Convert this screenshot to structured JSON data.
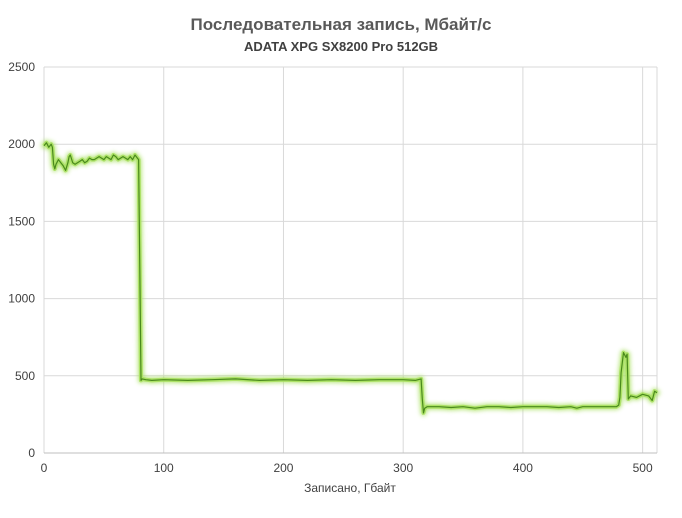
{
  "chart_data": {
    "type": "line",
    "title": "Последовательная запись, Мбайт/с",
    "subtitle": "ADATA XPG SX8200  Pro 512GB",
    "xlabel": "Записано, Гбайт",
    "ylabel": "",
    "xlim": [
      0,
      512
    ],
    "ylim": [
      0,
      2500
    ],
    "x_ticks": [
      "0",
      "100",
      "200",
      "300",
      "400",
      "500"
    ],
    "y_ticks": [
      "0",
      "500",
      "1000",
      "1500",
      "2000",
      "2500"
    ],
    "grid": true,
    "legend": "none",
    "colors": {
      "line": "#4a8a1c",
      "glow": "#a8e060",
      "grid": "#d9d9d9",
      "border": "#bfbfbf"
    },
    "series": [
      {
        "x": [
          0,
          2,
          4,
          6,
          7,
          8,
          9,
          10,
          12,
          14,
          16,
          18,
          20,
          21,
          22,
          24,
          26,
          28,
          30,
          32,
          34,
          36,
          38,
          40,
          42,
          44,
          46,
          48,
          50,
          52,
          54,
          56,
          58,
          60,
          62,
          64,
          66,
          68,
          70,
          72,
          74,
          76,
          78,
          79,
          80,
          81,
          82,
          85,
          90,
          100,
          120,
          140,
          160,
          180,
          200,
          220,
          240,
          260,
          280,
          300,
          310,
          315,
          316,
          317,
          318,
          320,
          330,
          340,
          350,
          360,
          370,
          380,
          390,
          400,
          410,
          420,
          430,
          440,
          445,
          450,
          460,
          470,
          478,
          480,
          481,
          482,
          484,
          486,
          487,
          488,
          490,
          495,
          500,
          505,
          508,
          510,
          512
        ],
        "y": [
          1990,
          2010,
          1980,
          2000,
          1980,
          1870,
          1840,
          1870,
          1900,
          1880,
          1860,
          1830,
          1880,
          1920,
          1930,
          1880,
          1870,
          1880,
          1890,
          1900,
          1880,
          1890,
          1910,
          1900,
          1900,
          1910,
          1920,
          1910,
          1900,
          1920,
          1910,
          1900,
          1930,
          1920,
          1900,
          1910,
          1920,
          1910,
          1900,
          1920,
          1900,
          1930,
          1910,
          1900,
          1200,
          470,
          480,
          475,
          470,
          475,
          470,
          475,
          480,
          470,
          475,
          470,
          475,
          470,
          475,
          475,
          470,
          480,
          350,
          260,
          290,
          300,
          300,
          295,
          300,
          290,
          300,
          300,
          295,
          300,
          300,
          300,
          295,
          300,
          290,
          300,
          300,
          300,
          300,
          310,
          360,
          520,
          650,
          620,
          640,
          350,
          370,
          360,
          380,
          370,
          340,
          400,
          390
        ]
      }
    ]
  }
}
